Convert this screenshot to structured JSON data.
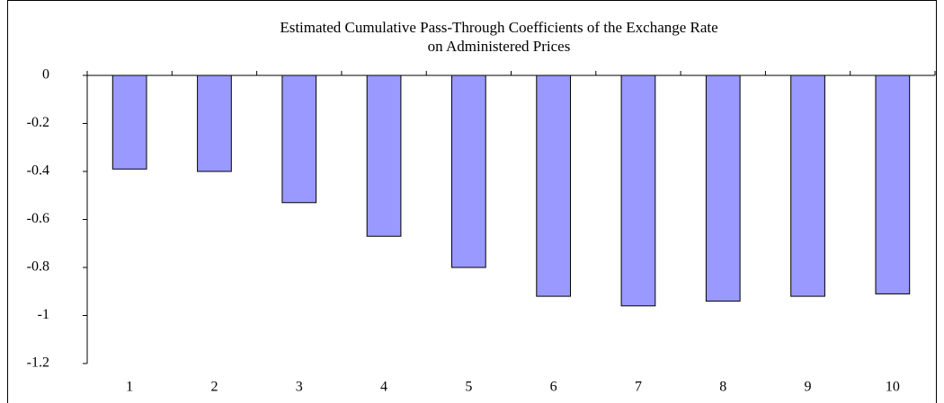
{
  "chart_data": {
    "type": "bar",
    "title": [
      "Estimated Cumulative Pass-Through Coefficients of the Exchange Rate",
      "on Administered Prices"
    ],
    "categories": [
      "1",
      "2",
      "3",
      "4",
      "5",
      "6",
      "7",
      "8",
      "9",
      "10"
    ],
    "values": [
      -0.39,
      -0.4,
      -0.53,
      -0.67,
      -0.8,
      -0.92,
      -0.96,
      -0.94,
      -0.92,
      -0.91
    ],
    "color": "#9999ff",
    "ylim": [
      -1.2,
      0
    ],
    "yticks": [
      0,
      -0.2,
      -0.4,
      -0.6,
      -0.8,
      -1,
      -1.2
    ],
    "grid": false
  }
}
